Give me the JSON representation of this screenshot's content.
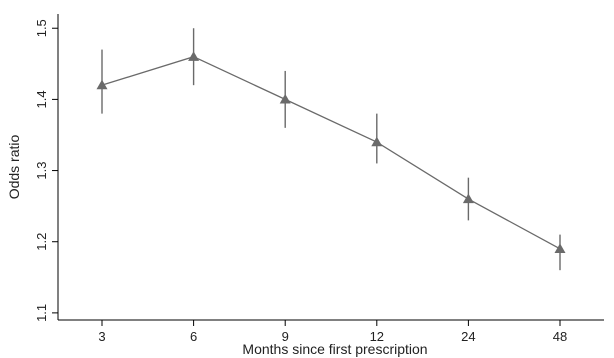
{
  "chart_data": {
    "type": "line",
    "title": "",
    "xlabel": "Months since first prescription",
    "ylabel": "Odds ratio",
    "categories": [
      "3",
      "6",
      "9",
      "12",
      "24",
      "48"
    ],
    "series": [
      {
        "values": [
          1.42,
          1.46,
          1.4,
          1.34,
          1.26,
          1.19
        ],
        "ci_lower": [
          1.38,
          1.42,
          1.36,
          1.31,
          1.23,
          1.16
        ],
        "ci_upper": [
          1.47,
          1.5,
          1.44,
          1.38,
          1.29,
          1.21
        ],
        "marker": "triangle",
        "color": "#6a6a6a"
      }
    ],
    "ylim": [
      1.09,
      1.52
    ],
    "yticks": [
      "1.1",
      "1.2",
      "1.3",
      "1.4",
      "1.5"
    ],
    "grid": false,
    "legend": "none"
  }
}
